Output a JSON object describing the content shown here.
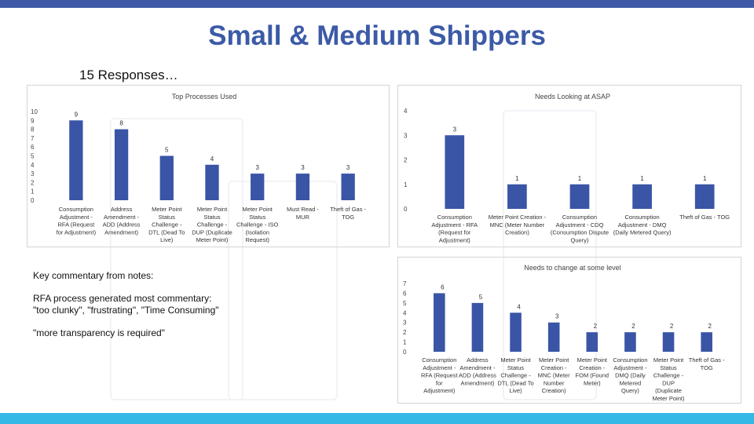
{
  "title": "Small & Medium Shippers",
  "subtitle": "15 Responses…",
  "commentary": {
    "heading": "Key commentary from notes:",
    "line1": "RFA process generated most commentary:",
    "line2": "\"too clunky\", \"frustrating\", \"Time Consuming\"",
    "line3": "\"more transparency is required\""
  },
  "colors": {
    "bar": "#3a55a6",
    "title": "#3c5aa6",
    "top_band": "#3f5aa8",
    "bottom_band": "#35b8e6"
  },
  "chart_data": [
    {
      "type": "bar",
      "title": "Top Processes Used",
      "ylim": [
        0,
        10
      ],
      "yticks": [
        "0",
        "1",
        "2",
        "3",
        "4",
        "5",
        "6",
        "7",
        "8",
        "9",
        "10"
      ],
      "categories": [
        [
          "Consumption",
          "Adjustment -",
          "RFA (Request",
          "for Adjustment)"
        ],
        [
          "Address",
          "Amendment -",
          "ADD (Address",
          "Amendment)"
        ],
        [
          "Meter Point",
          "Status",
          "Challenge -",
          "DTL (Dead To",
          "Live)"
        ],
        [
          "Meter Point",
          "Status",
          "Challenge -",
          "DUP (Duplicate",
          "Meter Point)"
        ],
        [
          "Meter Point",
          "Status",
          "Challenge - ISO",
          "(Isolation",
          "Request)"
        ],
        [
          "Must Read -",
          "MUR"
        ],
        [
          "Theft of Gas -",
          "TOG"
        ]
      ],
      "values": [
        9,
        8,
        5,
        4,
        3,
        3,
        3
      ],
      "labels": [
        "9",
        "8",
        "5",
        "4",
        "3",
        "3",
        "3"
      ]
    },
    {
      "type": "bar",
      "title": "Needs Looking at ASAP",
      "ylim": [
        0,
        4
      ],
      "yticks": [
        "0",
        "1",
        "2",
        "3",
        "4"
      ],
      "categories": [
        [
          "Consumption",
          "Adjustment - RFA",
          "(Request for",
          "Adjustment)"
        ],
        [
          "Meter Point Creation -",
          "MNC (Meter Number",
          "Creation)"
        ],
        [
          "Consumption",
          "Adjustment - CDQ",
          "(Consumption Dispute",
          "Query)"
        ],
        [
          "Consumption",
          "Adjustment - DMQ",
          "(Daily Metered Query)"
        ],
        [
          "Theft of Gas - TOG"
        ]
      ],
      "values": [
        3,
        1,
        1,
        1,
        1
      ],
      "labels": [
        "3",
        "1",
        "1",
        "1",
        "1"
      ]
    },
    {
      "type": "bar",
      "title": "Needs to change at some level",
      "ylim": [
        0,
        7
      ],
      "yticks": [
        "0",
        "1",
        "2",
        "3",
        "4",
        "5",
        "6",
        "7"
      ],
      "categories": [
        [
          "Consumption",
          "Adjustment -",
          "RFA (Request",
          "for",
          "Adjustment)"
        ],
        [
          "Address",
          "Amendment -",
          "ADD (Address",
          "Amendment)"
        ],
        [
          "Meter Point",
          "Status",
          "Challenge -",
          "DTL (Dead To",
          "Live)"
        ],
        [
          "Meter Point",
          "Creation -",
          "MNC (Meter",
          "Number",
          "Creation)"
        ],
        [
          "Meter Point",
          "Creation -",
          "FOM (Found",
          "Meter)"
        ],
        [
          "Consumption",
          "Adjustment -",
          "DMQ (Daily",
          "Metered",
          "Query)"
        ],
        [
          "Meter Point",
          "Status",
          "Challenge -",
          "DUP",
          "(Duplicate",
          "Meter Point)"
        ],
        [
          "Theft of Gas -",
          "TOG"
        ]
      ],
      "values": [
        6,
        5,
        4,
        3,
        2,
        2,
        2,
        2
      ],
      "labels": [
        "6",
        "5",
        "4",
        "3",
        "2",
        "2",
        "2",
        "2"
      ]
    }
  ]
}
